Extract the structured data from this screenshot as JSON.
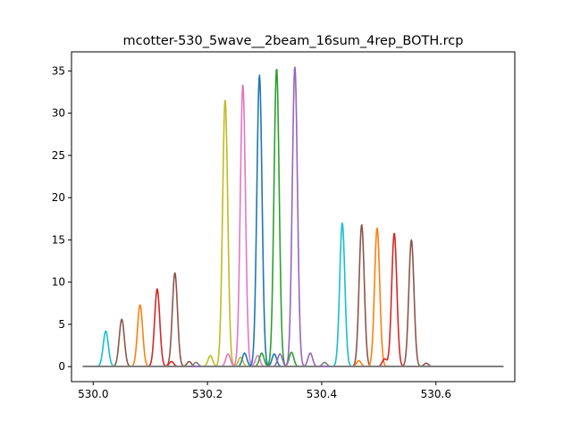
{
  "chart_data": {
    "type": "line",
    "title": "mcotter-530_5wave__2beam_16sum_4rep_BOTH.rcp",
    "xlabel": "",
    "ylabel": "",
    "xlim": [
      529.962,
      530.738
    ],
    "ylim": [
      -1.78,
      37.26
    ],
    "x_range": [
      529.982,
      530.718
    ],
    "grid": false,
    "legend": "none",
    "xticks": [
      530.0,
      530.2,
      530.4,
      530.6
    ],
    "xtick_labels": [
      "530.0",
      "530.2",
      "530.4",
      "530.6"
    ],
    "yticks": [
      0,
      5,
      10,
      15,
      20,
      25,
      30,
      35
    ],
    "ytick_labels": [
      "0",
      "5",
      "10",
      "15",
      "20",
      "25",
      "30",
      "35"
    ],
    "series": [
      {
        "color": "#17becf",
        "peaks": [
          {
            "center": 530.022,
            "height": 4.2,
            "sigma": 0.0045
          },
          {
            "center": 530.436,
            "height": 17.0,
            "sigma": 0.0045
          }
        ]
      },
      {
        "color": "#8c564b",
        "peaks": [
          {
            "center": 530.05,
            "height": 5.6,
            "sigma": 0.0045
          },
          {
            "center": 530.143,
            "height": 11.1,
            "sigma": 0.0045
          },
          {
            "center": 530.47,
            "height": 16.8,
            "sigma": 0.0045
          },
          {
            "center": 530.557,
            "height": 15.0,
            "sigma": 0.0045
          },
          {
            "center": 530.168,
            "height": 0.6,
            "sigma": 0.004
          },
          {
            "center": 530.583,
            "height": 0.4,
            "sigma": 0.004
          }
        ]
      },
      {
        "color": "#ff7f0e",
        "peaks": [
          {
            "center": 530.082,
            "height": 7.3,
            "sigma": 0.0045
          },
          {
            "center": 530.497,
            "height": 16.4,
            "sigma": 0.0045
          },
          {
            "center": 530.465,
            "height": 0.7,
            "sigma": 0.004
          }
        ]
      },
      {
        "color": "#d62728",
        "peaks": [
          {
            "center": 530.112,
            "height": 9.2,
            "sigma": 0.0045
          },
          {
            "center": 530.527,
            "height": 15.8,
            "sigma": 0.0045
          },
          {
            "center": 530.137,
            "height": 0.6,
            "sigma": 0.004
          },
          {
            "center": 530.51,
            "height": 0.9,
            "sigma": 0.004
          }
        ]
      },
      {
        "color": "#bcbd22",
        "peaks": [
          {
            "center": 530.231,
            "height": 31.6,
            "sigma": 0.0045
          },
          {
            "center": 530.205,
            "height": 1.3,
            "sigma": 0.004
          },
          {
            "center": 530.258,
            "height": 1.1,
            "sigma": 0.004
          }
        ]
      },
      {
        "color": "#e377c2",
        "peaks": [
          {
            "center": 530.262,
            "height": 33.4,
            "sigma": 0.0045
          },
          {
            "center": 530.236,
            "height": 1.5,
            "sigma": 0.004
          },
          {
            "center": 530.288,
            "height": 1.3,
            "sigma": 0.004
          }
        ]
      },
      {
        "color": "#1f77b4",
        "peaks": [
          {
            "center": 530.291,
            "height": 34.5,
            "sigma": 0.0045
          },
          {
            "center": 530.265,
            "height": 1.6,
            "sigma": 0.004
          },
          {
            "center": 530.317,
            "height": 1.5,
            "sigma": 0.004
          }
        ]
      },
      {
        "color": "#2ca02c",
        "peaks": [
          {
            "center": 530.321,
            "height": 35.3,
            "sigma": 0.0045
          },
          {
            "center": 530.295,
            "height": 1.6,
            "sigma": 0.004
          },
          {
            "center": 530.347,
            "height": 1.7,
            "sigma": 0.004
          }
        ]
      },
      {
        "color": "#9467bd",
        "peaks": [
          {
            "center": 530.353,
            "height": 35.5,
            "sigma": 0.0045
          },
          {
            "center": 530.327,
            "height": 1.5,
            "sigma": 0.004
          },
          {
            "center": 530.38,
            "height": 1.6,
            "sigma": 0.004
          }
        ]
      },
      {
        "color": "#7f7f7f",
        "peaks": [
          {
            "center": 530.18,
            "height": 0.5,
            "sigma": 0.004
          },
          {
            "center": 530.405,
            "height": 0.5,
            "sigma": 0.004
          }
        ]
      }
    ]
  }
}
